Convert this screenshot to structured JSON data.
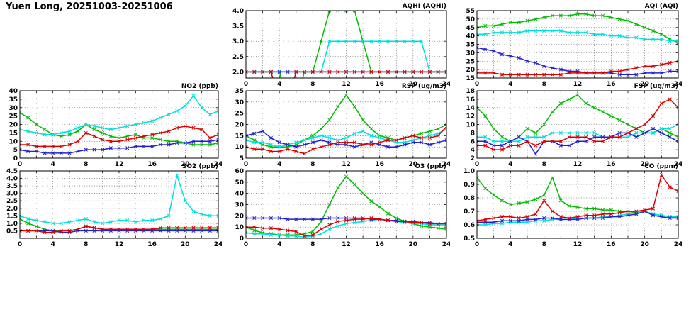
{
  "page_title": "Yuen Long, 20251003-20251006",
  "colors": {
    "green": "#00bb00",
    "cyan": "#00dede",
    "blue": "#2222cc",
    "red": "#dd0000"
  },
  "axis": {
    "xlim": [
      0,
      24
    ],
    "xticks": [
      0,
      4,
      8,
      12,
      16,
      20,
      24
    ],
    "xgrid_step": 2,
    "grid": "dotted",
    "legend": "none"
  },
  "chart_data": [
    {
      "type": "line",
      "title": "AQHI (AQHI)",
      "name": "aqhi",
      "ylim": [
        1.8,
        4.0
      ],
      "yticks": [
        2.0,
        2.5,
        3.0,
        3.5,
        4.0
      ],
      "ytick_decimals": 1,
      "series": [
        {
          "name": "day-green",
          "color": "green",
          "values": [
            2,
            2,
            2,
            2,
            2,
            1,
            1,
            2,
            2,
            3,
            4,
            4,
            4,
            4,
            3,
            2,
            2,
            2,
            2,
            2,
            2,
            2,
            2,
            2,
            2
          ]
        },
        {
          "name": "day-cyan",
          "color": "cyan",
          "values": [
            2,
            2,
            2,
            2,
            2,
            2,
            2,
            2,
            2,
            2,
            3,
            3,
            3,
            3,
            3,
            3,
            3,
            3,
            3,
            3,
            3,
            3,
            2,
            2,
            2
          ]
        },
        {
          "name": "day-blue",
          "color": "blue",
          "values": [
            2,
            2,
            2,
            2,
            2,
            2,
            2,
            2,
            2,
            2,
            2,
            2,
            2,
            2,
            2,
            2,
            2,
            2,
            2,
            2,
            2,
            2,
            2,
            2,
            2
          ]
        },
        {
          "name": "day-red",
          "color": "red",
          "values": [
            2,
            2,
            2,
            2,
            1,
            1,
            2,
            2,
            2,
            2,
            2,
            2,
            2,
            2,
            2,
            2,
            2,
            2,
            2,
            2,
            2,
            2,
            2,
            2,
            2
          ]
        }
      ]
    },
    {
      "type": "line",
      "title": "AQI (AQI)",
      "name": "aqi",
      "ylim": [
        15,
        55
      ],
      "yticks": [
        15,
        20,
        25,
        30,
        35,
        40,
        45,
        50,
        55
      ],
      "ytick_decimals": 0,
      "series": [
        {
          "name": "day-green",
          "color": "green",
          "values": [
            45,
            46,
            46,
            47,
            48,
            48,
            49,
            50,
            51,
            52,
            52,
            52,
            53,
            53,
            52,
            52,
            51,
            50,
            49,
            47,
            45,
            43,
            41,
            38,
            36
          ]
        },
        {
          "name": "day-cyan",
          "color": "cyan",
          "values": [
            41,
            41,
            42,
            42,
            42,
            42,
            43,
            43,
            43,
            43,
            43,
            42,
            42,
            42,
            41,
            41,
            40,
            40,
            39,
            39,
            38,
            38,
            38,
            37,
            37
          ]
        },
        {
          "name": "day-blue",
          "color": "blue",
          "values": [
            33,
            32,
            31,
            29,
            28,
            27,
            25,
            24,
            22,
            21,
            20,
            19,
            19,
            18,
            18,
            18,
            18,
            17,
            17,
            17,
            18,
            18,
            18,
            19,
            19
          ]
        },
        {
          "name": "day-red",
          "color": "red",
          "values": [
            18,
            18,
            18,
            17,
            17,
            17,
            17,
            17,
            17,
            17,
            17,
            18,
            18,
            18,
            18,
            18,
            19,
            19,
            20,
            21,
            22,
            22,
            23,
            24,
            25
          ]
        }
      ]
    },
    {
      "type": "line",
      "title": "NO2 (ppb)",
      "name": "no2",
      "ylim": [
        0,
        40
      ],
      "yticks": [
        0,
        5,
        10,
        15,
        20,
        25,
        30,
        35,
        40
      ],
      "ytick_decimals": 0,
      "series": [
        {
          "name": "day-green",
          "color": "green",
          "values": [
            27,
            24,
            20,
            17,
            14,
            13,
            14,
            16,
            20,
            17,
            15,
            13,
            12,
            13,
            14,
            12,
            12,
            11,
            10,
            10,
            9,
            8,
            8,
            8,
            9
          ]
        },
        {
          "name": "day-cyan",
          "color": "cyan",
          "values": [
            17,
            16,
            15,
            14,
            14,
            15,
            16,
            18,
            20,
            19,
            18,
            17,
            18,
            19,
            20,
            21,
            22,
            24,
            26,
            28,
            31,
            37,
            30,
            26,
            28
          ]
        },
        {
          "name": "day-blue",
          "color": "blue",
          "values": [
            5,
            4,
            4,
            3,
            3,
            3,
            3,
            4,
            5,
            5,
            5,
            6,
            6,
            6,
            7,
            7,
            7,
            8,
            8,
            9,
            9,
            10,
            10,
            10,
            11
          ]
        },
        {
          "name": "day-red",
          "color": "red",
          "values": [
            8,
            8,
            7,
            7,
            7,
            7,
            8,
            10,
            15,
            13,
            11,
            10,
            10,
            11,
            12,
            13,
            14,
            15,
            16,
            18,
            19,
            18,
            17,
            12,
            14
          ]
        }
      ]
    },
    {
      "type": "line",
      "title": "RSP (ug/m3)",
      "name": "rsp",
      "ylim": [
        5,
        35
      ],
      "yticks": [
        5,
        10,
        15,
        20,
        25,
        30,
        35
      ],
      "ytick_decimals": 0,
      "series": [
        {
          "name": "day-green",
          "color": "green",
          "values": [
            15,
            13,
            11,
            10,
            10,
            10,
            11,
            13,
            15,
            18,
            22,
            28,
            33,
            28,
            22,
            18,
            15,
            14,
            13,
            14,
            15,
            16,
            17,
            18,
            20
          ]
        },
        {
          "name": "day-cyan",
          "color": "cyan",
          "values": [
            13,
            12,
            12,
            11,
            10,
            11,
            12,
            13,
            14,
            15,
            14,
            13,
            14,
            16,
            17,
            15,
            14,
            13,
            12,
            12,
            13,
            14,
            15,
            16,
            18
          ]
        },
        {
          "name": "day-blue",
          "color": "blue",
          "values": [
            15,
            16,
            17,
            14,
            12,
            11,
            10,
            11,
            12,
            13,
            12,
            11,
            11,
            10,
            11,
            12,
            11,
            10,
            10,
            11,
            12,
            12,
            11,
            12,
            13
          ]
        },
        {
          "name": "day-red",
          "color": "red",
          "values": [
            10,
            9,
            9,
            8,
            8,
            9,
            8,
            7,
            9,
            10,
            11,
            12,
            12,
            12,
            11,
            11,
            12,
            13,
            13,
            14,
            15,
            14,
            14,
            15,
            19
          ]
        }
      ]
    },
    {
      "type": "line",
      "title": "FSP (ug/m3)",
      "name": "fsp",
      "ylim": [
        2,
        18
      ],
      "yticks": [
        2,
        4,
        6,
        8,
        10,
        12,
        14,
        16,
        18
      ],
      "ytick_decimals": 0,
      "series": [
        {
          "name": "day-green",
          "color": "green",
          "values": [
            14,
            12,
            9,
            7,
            6,
            7,
            9,
            8,
            10,
            13,
            15,
            16,
            17,
            15,
            14,
            13,
            12,
            11,
            10,
            9,
            8,
            8,
            9,
            8,
            7
          ]
        },
        {
          "name": "day-cyan",
          "color": "cyan",
          "values": [
            7,
            7,
            6,
            6,
            6,
            6,
            7,
            7,
            7,
            8,
            8,
            8,
            8,
            8,
            8,
            7,
            7,
            7,
            7,
            8,
            8,
            8,
            9,
            9,
            10
          ]
        },
        {
          "name": "day-blue",
          "color": "blue",
          "values": [
            6,
            6,
            5,
            5,
            6,
            7,
            6,
            3,
            6,
            6,
            5,
            5,
            6,
            6,
            7,
            7,
            7,
            8,
            8,
            7,
            8,
            9,
            8,
            7,
            6
          ]
        },
        {
          "name": "day-red",
          "color": "red",
          "values": [
            5,
            5,
            4,
            4,
            5,
            5,
            6,
            5,
            6,
            6,
            6,
            7,
            7,
            7,
            6,
            6,
            7,
            7,
            8,
            9,
            10,
            12,
            15,
            16,
            14
          ]
        }
      ]
    },
    {
      "type": "line",
      "title": "SO2 (ppb)",
      "name": "so2",
      "ylim": [
        0,
        4.5
      ],
      "yticks": [
        0.5,
        1.0,
        1.5,
        2.0,
        2.5,
        3.0,
        3.5,
        4.0,
        4.5
      ],
      "ytick_decimals": 1,
      "series": [
        {
          "name": "day-green",
          "color": "green",
          "values": [
            1.3,
            1.0,
            0.8,
            0.6,
            0.5,
            0.5,
            0.5,
            0.6,
            0.8,
            0.7,
            0.6,
            0.6,
            0.6,
            0.6,
            0.6,
            0.6,
            0.6,
            0.6,
            0.6,
            0.6,
            0.6,
            0.6,
            0.6,
            0.6,
            0.6
          ]
        },
        {
          "name": "day-cyan",
          "color": "cyan",
          "values": [
            1.5,
            1.3,
            1.2,
            1.1,
            1.0,
            1.0,
            1.1,
            1.2,
            1.3,
            1.1,
            1.0,
            1.1,
            1.2,
            1.2,
            1.1,
            1.2,
            1.2,
            1.3,
            1.5,
            4.2,
            2.5,
            1.8,
            1.6,
            1.5,
            1.5
          ]
        },
        {
          "name": "day-blue",
          "color": "blue",
          "values": [
            0.5,
            0.5,
            0.5,
            0.5,
            0.5,
            0.4,
            0.4,
            0.5,
            0.5,
            0.5,
            0.5,
            0.5,
            0.5,
            0.5,
            0.5,
            0.5,
            0.5,
            0.5,
            0.5,
            0.5,
            0.5,
            0.5,
            0.5,
            0.5,
            0.5
          ]
        },
        {
          "name": "day-red",
          "color": "red",
          "values": [
            0.5,
            0.5,
            0.5,
            0.4,
            0.4,
            0.5,
            0.5,
            0.6,
            0.8,
            0.7,
            0.6,
            0.6,
            0.6,
            0.6,
            0.6,
            0.6,
            0.6,
            0.7,
            0.7,
            0.7,
            0.7,
            0.7,
            0.7,
            0.7,
            0.7
          ]
        }
      ]
    },
    {
      "type": "line",
      "title": "O3 (ppb)",
      "name": "o3",
      "ylim": [
        0,
        60
      ],
      "yticks": [
        0,
        10,
        20,
        30,
        40,
        50,
        60
      ],
      "ytick_decimals": 0,
      "series": [
        {
          "name": "day-green",
          "color": "green",
          "values": [
            10,
            7,
            5,
            4,
            3,
            3,
            3,
            4,
            6,
            15,
            30,
            45,
            55,
            48,
            40,
            33,
            28,
            22,
            18,
            15,
            13,
            11,
            10,
            9,
            8
          ]
        },
        {
          "name": "day-cyan",
          "color": "cyan",
          "values": [
            5,
            4,
            4,
            3,
            3,
            2,
            2,
            1,
            2,
            4,
            8,
            11,
            13,
            14,
            15,
            16,
            17,
            16,
            15,
            14,
            13,
            13,
            12,
            12,
            12
          ]
        },
        {
          "name": "day-blue",
          "color": "blue",
          "values": [
            18,
            18,
            18,
            18,
            18,
            17,
            17,
            17,
            17,
            17,
            18,
            18,
            18,
            18,
            18,
            17,
            17,
            16,
            16,
            15,
            15,
            14,
            14,
            13,
            13
          ]
        },
        {
          "name": "day-red",
          "color": "red",
          "values": [
            10,
            10,
            9,
            9,
            8,
            7,
            6,
            2,
            3,
            8,
            12,
            15,
            16,
            17,
            17,
            18,
            17,
            16,
            15,
            15,
            14,
            14,
            13,
            13,
            13
          ]
        }
      ]
    },
    {
      "type": "line",
      "title": "CO (ppm)",
      "name": "co",
      "ylim": [
        0.5,
        1.0
      ],
      "yticks": [
        0.5,
        0.6,
        0.7,
        0.8,
        0.9,
        1.0
      ],
      "ytick_decimals": 1,
      "series": [
        {
          "name": "day-green",
          "color": "green",
          "values": [
            0.95,
            0.87,
            0.82,
            0.78,
            0.75,
            0.76,
            0.77,
            0.79,
            0.82,
            0.95,
            0.78,
            0.74,
            0.73,
            0.72,
            0.72,
            0.71,
            0.71,
            0.7,
            0.7,
            0.69,
            0.7,
            0.68,
            0.67,
            0.66,
            0.65
          ]
        },
        {
          "name": "day-cyan",
          "color": "cyan",
          "values": [
            0.6,
            0.6,
            0.61,
            0.61,
            0.62,
            0.62,
            0.62,
            0.63,
            0.63,
            0.64,
            0.64,
            0.64,
            0.65,
            0.65,
            0.65,
            0.66,
            0.66,
            0.67,
            0.68,
            0.69,
            0.7,
            0.68,
            0.67,
            0.66,
            0.66
          ]
        },
        {
          "name": "day-blue",
          "color": "blue",
          "values": [
            0.62,
            0.62,
            0.62,
            0.63,
            0.63,
            0.63,
            0.64,
            0.64,
            0.65,
            0.65,
            0.64,
            0.64,
            0.64,
            0.65,
            0.65,
            0.65,
            0.66,
            0.66,
            0.67,
            0.68,
            0.7,
            0.67,
            0.66,
            0.65,
            0.65
          ]
        },
        {
          "name": "day-red",
          "color": "red",
          "values": [
            0.63,
            0.64,
            0.65,
            0.66,
            0.66,
            0.65,
            0.66,
            0.68,
            0.78,
            0.7,
            0.66,
            0.65,
            0.66,
            0.67,
            0.67,
            0.68,
            0.68,
            0.69,
            0.7,
            0.7,
            0.71,
            0.72,
            0.97,
            0.88,
            0.85
          ]
        }
      ]
    }
  ]
}
